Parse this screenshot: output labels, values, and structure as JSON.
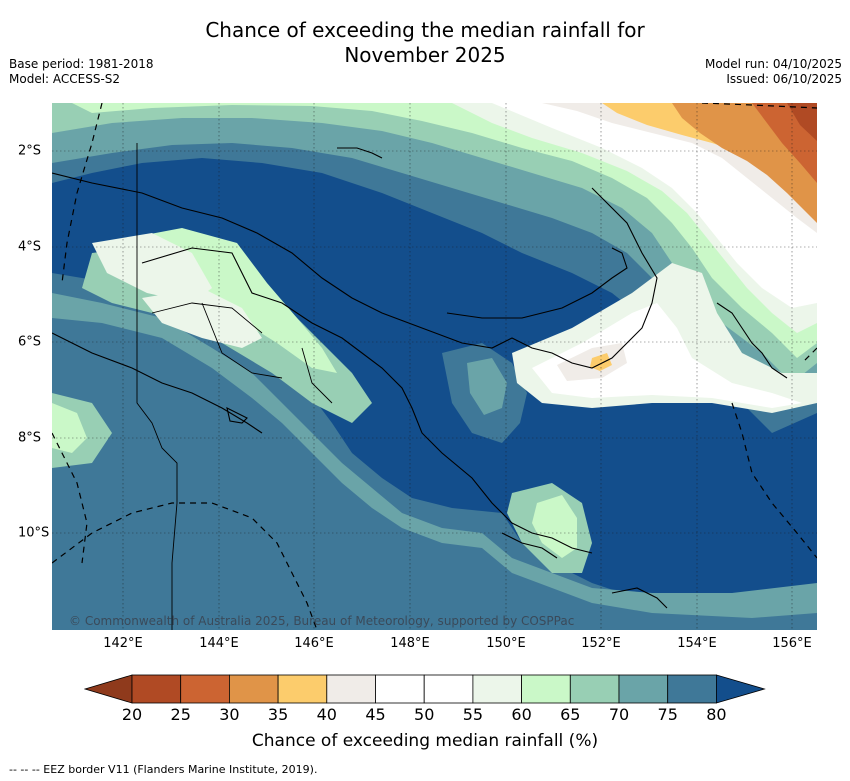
{
  "title": {
    "line1": "Chance of exceeding the median rainfall for",
    "line2": "November 2025"
  },
  "meta_left": {
    "base_period": "Base period: 1981-2018",
    "model": "Model: ACCESS-S2"
  },
  "meta_right": {
    "model_run": "Model run: 04/10/2025",
    "issued": "Issued: 06/10/2025"
  },
  "map": {
    "x_ticks": [
      "142°E",
      "144°E",
      "146°E",
      "148°E",
      "150°E",
      "152°E",
      "154°E",
      "156°E"
    ],
    "y_ticks": [
      "2°S",
      "4°S",
      "6°S",
      "8°S",
      "10°S"
    ],
    "copyright": "© Commonwealth of Australia 2025, Bureau of Meteorology, supported by COSPPac"
  },
  "colorbar": {
    "ticks": [
      "20",
      "25",
      "30",
      "35",
      "40",
      "45",
      "50",
      "55",
      "60",
      "65",
      "70",
      "75",
      "80"
    ],
    "label": "Chance of exceeding median rainfall (%)",
    "colors": [
      "#b04a24",
      "#cc6432",
      "#e09448",
      "#fccc6c",
      "#f0ece8",
      "#ffffff",
      "#ffffff",
      "#ecf6ea",
      "#caf8c8",
      "#98cfb4",
      "#6aa4a8",
      "#3f7898"
    ],
    "low_extend_color": "#8f3a1c",
    "high_extend_color": "#134e8c"
  },
  "footer": {
    "legend": "-- -- -- EEZ border V11 (Flanders Marine Institute, 2019)."
  }
}
